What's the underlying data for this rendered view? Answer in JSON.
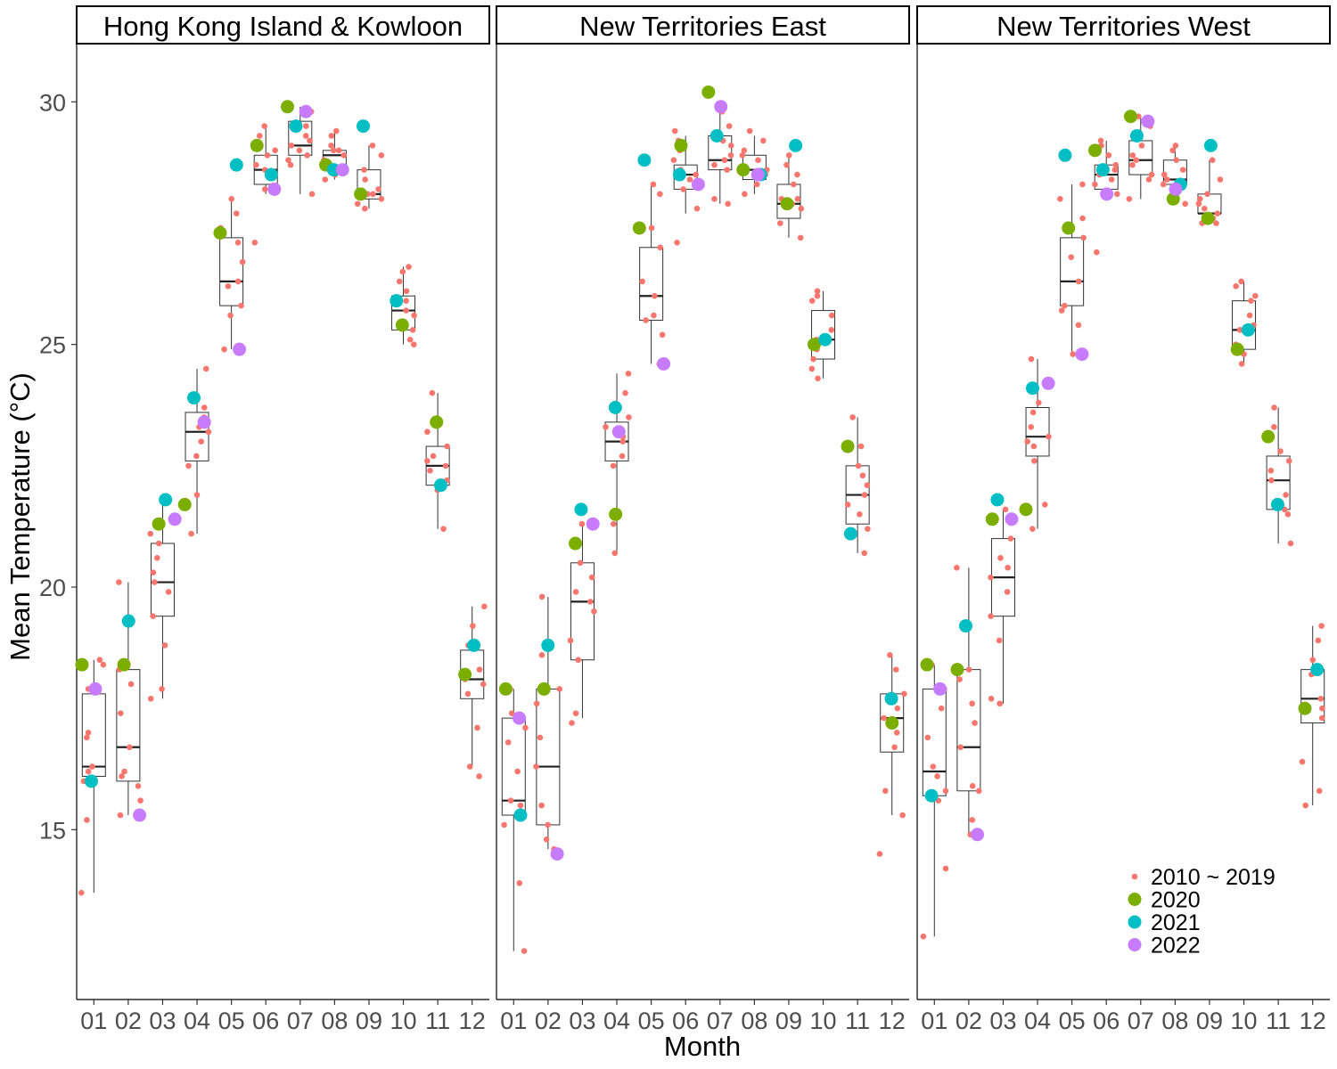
{
  "chart_data": {
    "type": "box-and-jitter",
    "xlabel": "Month",
    "ylabel": "Mean Temperature (°C)",
    "ylim": [
      11.5,
      31.2
    ],
    "yticks": [
      15,
      20,
      25,
      30
    ],
    "categories": [
      "01",
      "02",
      "03",
      "04",
      "05",
      "06",
      "07",
      "08",
      "09",
      "10",
      "11",
      "12"
    ],
    "legend": {
      "position": "bottom-right of third panel",
      "entries": [
        {
          "label": "2010 ~ 2019",
          "color": "#F8766D"
        },
        {
          "label": "2020",
          "color": "#7CAE00"
        },
        {
          "label": "2021",
          "color": "#00BFC4"
        },
        {
          "label": "2022",
          "color": "#C77CFF"
        }
      ]
    },
    "panels": [
      {
        "title": "Hong Kong Island & Kowloon",
        "box": [
          [
            13.7,
            16.1,
            16.3,
            17.8,
            18.5
          ],
          [
            15.3,
            16.0,
            16.7,
            18.3,
            20.1
          ],
          [
            17.7,
            19.4,
            20.1,
            20.9,
            21.8
          ],
          [
            21.1,
            22.6,
            23.2,
            23.6,
            24.5
          ],
          [
            24.9,
            25.8,
            26.3,
            27.2,
            28.0
          ],
          [
            28.1,
            28.3,
            28.6,
            28.9,
            29.5
          ],
          [
            28.1,
            28.9,
            29.1,
            29.6,
            29.9
          ],
          [
            28.4,
            28.7,
            28.9,
            29.0,
            29.4
          ],
          [
            27.8,
            28.0,
            28.1,
            28.6,
            29.1
          ],
          [
            25.0,
            25.3,
            25.7,
            26.0,
            26.6
          ],
          [
            21.2,
            22.1,
            22.5,
            22.9,
            24.0
          ],
          [
            16.3,
            17.7,
            18.1,
            18.7,
            19.6
          ]
        ],
        "jitter_2010_2019": [
          [
            13.7,
            15.2,
            16.0,
            16.2,
            16.3,
            16.9,
            17.0,
            17.9,
            18.4,
            18.5
          ],
          [
            15.3,
            15.6,
            15.9,
            16.1,
            16.2,
            16.7,
            17.4,
            18.0,
            18.3,
            20.1
          ],
          [
            17.7,
            17.9,
            18.8,
            19.4,
            19.9,
            20.1,
            20.3,
            20.6,
            20.9,
            21.1
          ],
          [
            21.1,
            21.9,
            22.5,
            22.7,
            23.0,
            23.2,
            23.3,
            23.5,
            23.7,
            24.5
          ],
          [
            24.9,
            25.6,
            25.8,
            26.2,
            26.3,
            26.7,
            27.1,
            27.4,
            27.7,
            28.0
          ],
          [
            27.1,
            28.2,
            28.5,
            28.6,
            28.7,
            28.9,
            29.0,
            29.1,
            29.3,
            29.5
          ],
          [
            28.1,
            28.7,
            28.8,
            28.9,
            29.0,
            29.1,
            29.2,
            29.3,
            29.5,
            29.8
          ],
          [
            28.4,
            28.5,
            28.7,
            28.8,
            28.9,
            29.0,
            29.0,
            29.1,
            29.3,
            29.4
          ],
          [
            27.8,
            27.9,
            28.0,
            28.1,
            28.1,
            28.2,
            28.4,
            28.6,
            28.9,
            29.1
          ],
          [
            25.0,
            25.1,
            25.3,
            25.6,
            25.7,
            25.9,
            26.1,
            26.3,
            26.5,
            26.6
          ],
          [
            21.2,
            22.0,
            22.2,
            22.4,
            22.5,
            22.6,
            22.7,
            22.9,
            23.2,
            24.0
          ],
          [
            16.1,
            16.3,
            17.1,
            17.8,
            18.0,
            18.1,
            18.3,
            18.8,
            19.2,
            19.6
          ]
        ],
        "y2020": [
          18.4,
          18.4,
          21.3,
          21.7,
          27.3,
          29.1,
          29.9,
          28.7,
          28.1,
          25.4,
          23.4,
          18.2
        ],
        "y2021": [
          16.0,
          19.3,
          21.8,
          23.9,
          28.7,
          28.5,
          29.5,
          28.6,
          29.5,
          25.9,
          22.1,
          18.8
        ],
        "y2022": [
          17.9,
          15.3,
          21.4,
          23.4,
          24.9,
          28.2,
          29.8,
          28.6,
          null,
          null,
          null,
          null
        ]
      },
      {
        "title": "New Territories East",
        "box": [
          [
            12.5,
            15.3,
            15.6,
            17.3,
            17.9
          ],
          [
            14.6,
            15.1,
            16.3,
            17.9,
            19.8
          ],
          [
            17.3,
            18.5,
            19.7,
            20.5,
            21.3
          ],
          [
            20.7,
            22.6,
            23.0,
            23.4,
            24.4
          ],
          [
            24.6,
            25.5,
            26.0,
            27.0,
            28.3
          ],
          [
            27.7,
            28.2,
            28.5,
            28.7,
            29.3
          ],
          [
            27.9,
            28.6,
            28.8,
            29.3,
            29.8
          ],
          [
            28.1,
            28.4,
            28.6,
            28.9,
            29.3
          ],
          [
            27.2,
            27.6,
            27.9,
            28.3,
            28.9
          ],
          [
            24.3,
            24.7,
            25.1,
            25.7,
            26.1
          ],
          [
            20.7,
            21.3,
            21.9,
            22.5,
            23.5
          ],
          [
            15.3,
            16.6,
            17.3,
            17.8,
            18.6
          ]
        ],
        "jitter_2010_2019": [
          [
            12.5,
            13.9,
            15.1,
            15.5,
            15.6,
            16.2,
            16.8,
            17.1,
            17.4,
            17.9
          ],
          [
            14.6,
            14.8,
            15.1,
            15.5,
            16.3,
            16.9,
            17.6,
            17.9,
            18.6,
            19.8
          ],
          [
            17.2,
            17.4,
            18.5,
            18.9,
            19.5,
            19.7,
            19.9,
            20.2,
            20.5,
            21.3
          ],
          [
            20.7,
            21.3,
            22.5,
            22.7,
            23.0,
            23.1,
            23.3,
            23.5,
            24.0,
            24.4
          ],
          [
            24.6,
            25.2,
            25.5,
            25.6,
            26.0,
            26.3,
            27.0,
            27.4,
            28.1,
            28.3
          ],
          [
            27.1,
            27.8,
            28.2,
            28.4,
            28.5,
            28.6,
            28.8,
            29.0,
            29.2,
            29.4
          ],
          [
            27.9,
            28.0,
            28.6,
            28.7,
            28.8,
            28.9,
            29.1,
            29.2,
            29.5,
            29.8
          ],
          [
            28.1,
            28.3,
            28.5,
            28.6,
            28.6,
            28.8,
            28.9,
            29.0,
            29.2,
            29.4
          ],
          [
            27.2,
            27.5,
            27.8,
            27.9,
            28.0,
            28.0,
            28.3,
            28.5,
            28.7,
            28.9
          ],
          [
            24.3,
            24.5,
            24.7,
            24.9,
            25.1,
            25.3,
            25.6,
            25.9,
            26.0,
            26.1
          ],
          [
            20.7,
            21.2,
            21.5,
            21.7,
            21.9,
            22.1,
            22.3,
            22.5,
            22.9,
            23.5
          ],
          [
            14.5,
            15.3,
            15.8,
            16.7,
            17.0,
            17.3,
            17.5,
            17.8,
            18.3,
            18.6
          ]
        ],
        "y2020": [
          17.9,
          17.9,
          20.9,
          21.5,
          27.4,
          29.1,
          30.2,
          28.6,
          27.9,
          25.0,
          22.9,
          17.2
        ],
        "y2021": [
          15.3,
          18.8,
          21.6,
          23.7,
          28.8,
          28.5,
          29.3,
          28.5,
          29.1,
          25.1,
          21.1,
          17.7
        ],
        "y2022": [
          17.3,
          14.5,
          21.3,
          23.2,
          24.6,
          28.3,
          29.9,
          28.5,
          null,
          null,
          null,
          null
        ]
      },
      {
        "title": "New Territories West",
        "box": [
          [
            12.8,
            15.7,
            16.2,
            17.9,
            18.4
          ],
          [
            14.9,
            15.8,
            16.7,
            18.3,
            20.4
          ],
          [
            17.6,
            19.4,
            20.2,
            21.0,
            21.6
          ],
          [
            21.2,
            22.7,
            23.1,
            23.7,
            24.7
          ],
          [
            24.8,
            25.8,
            26.3,
            27.2,
            28.3
          ],
          [
            28.0,
            28.2,
            28.5,
            28.7,
            29.2
          ],
          [
            28.0,
            28.5,
            28.8,
            29.2,
            29.7
          ],
          [
            27.9,
            28.3,
            28.4,
            28.8,
            29.1
          ],
          [
            27.5,
            27.7,
            27.7,
            28.1,
            28.8
          ],
          [
            24.6,
            24.9,
            25.3,
            25.9,
            26.3
          ],
          [
            20.9,
            21.6,
            22.2,
            22.7,
            23.7
          ],
          [
            15.5,
            17.2,
            17.7,
            18.3,
            19.2
          ]
        ],
        "jitter_2010_2019": [
          [
            12.8,
            14.2,
            15.6,
            15.8,
            16.1,
            16.3,
            16.9,
            17.5,
            17.9,
            18.4
          ],
          [
            14.9,
            15.2,
            15.8,
            15.9,
            16.7,
            17.2,
            17.6,
            18.1,
            18.3,
            20.4
          ],
          [
            17.6,
            17.7,
            18.9,
            19.4,
            19.9,
            20.2,
            20.4,
            20.6,
            21.0,
            21.6
          ],
          [
            21.2,
            21.7,
            22.6,
            22.9,
            23.0,
            23.1,
            23.3,
            23.6,
            23.8,
            24.7
          ],
          [
            24.8,
            25.4,
            25.7,
            25.8,
            26.3,
            26.8,
            27.2,
            27.6,
            28.0,
            28.3
          ],
          [
            26.9,
            28.1,
            28.3,
            28.4,
            28.5,
            28.6,
            28.7,
            28.9,
            29.1,
            29.2
          ],
          [
            28.0,
            28.4,
            28.5,
            28.7,
            28.8,
            28.9,
            29.1,
            29.3,
            29.5,
            29.7
          ],
          [
            27.9,
            28.1,
            28.2,
            28.3,
            28.4,
            28.5,
            28.6,
            28.8,
            29.0,
            29.1
          ],
          [
            27.5,
            27.5,
            27.6,
            27.7,
            27.8,
            27.9,
            28.0,
            28.1,
            28.4,
            28.8
          ],
          [
            24.6,
            24.8,
            25.0,
            25.3,
            25.4,
            25.6,
            25.9,
            26.0,
            26.2,
            26.3
          ],
          [
            20.9,
            21.5,
            21.6,
            21.9,
            22.2,
            22.4,
            22.6,
            22.8,
            23.3,
            23.7
          ],
          [
            15.5,
            15.8,
            16.4,
            17.3,
            17.5,
            17.7,
            18.2,
            18.5,
            18.9,
            19.2
          ]
        ],
        "y2020": [
          18.4,
          18.3,
          21.4,
          21.6,
          27.4,
          29.0,
          29.7,
          28.0,
          27.6,
          24.9,
          23.1,
          17.5
        ],
        "y2021": [
          15.7,
          19.2,
          21.8,
          24.1,
          28.9,
          28.6,
          29.3,
          28.3,
          29.1,
          25.3,
          21.7,
          18.3
        ],
        "y2022": [
          17.9,
          14.9,
          21.4,
          24.2,
          24.8,
          28.1,
          29.6,
          28.2,
          null,
          null,
          null,
          null
        ]
      }
    ]
  }
}
